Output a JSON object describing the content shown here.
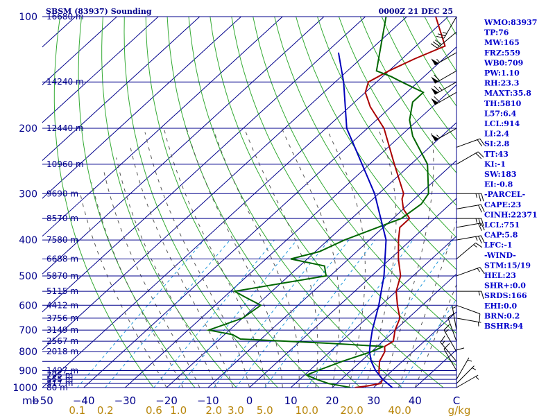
{
  "header": {
    "station": "SBSM (83937) Sounding",
    "time": "0000Z 21 DEC 25"
  },
  "colors": {
    "isobar": "#00008b",
    "isotherm": "#00008b",
    "dry_adiabat": "#33aa33",
    "moist_adiabat": "#555555",
    "mixing_ratio": "#2299dd",
    "temperature": "#aa0000",
    "dewpoint": "#006600",
    "parcel": "#0000bb",
    "wind_barb": "#000000"
  },
  "chart_data": {
    "type": "skew-t",
    "xlim": [
      -50,
      50
    ],
    "pressure_range": [
      1000,
      100
    ],
    "isobars": [
      {
        "p": 1000,
        "label": "1000",
        "height": "80 m"
      },
      {
        "p": 975,
        "label": "",
        "height": "317 m"
      },
      {
        "p": 950,
        "label": "",
        "height": "555 m"
      },
      {
        "p": 925,
        "label": "",
        "height": "795 m"
      },
      {
        "p": 900,
        "label": "900",
        "height": "1497 m"
      },
      {
        "p": 850,
        "label": "",
        "height": ""
      },
      {
        "p": 800,
        "label": "800",
        "height": "2018 m"
      },
      {
        "p": 750,
        "label": "",
        "height": "2567 m"
      },
      {
        "p": 700,
        "label": "700",
        "height": "3149 m"
      },
      {
        "p": 650,
        "label": "",
        "height": "3756 m"
      },
      {
        "p": 600,
        "label": "600",
        "height": "4412 m"
      },
      {
        "p": 550,
        "label": "",
        "height": "5115 m"
      },
      {
        "p": 500,
        "label": "500",
        "height": "5870 m"
      },
      {
        "p": 450,
        "label": "",
        "height": "6688 m"
      },
      {
        "p": 400,
        "label": "400",
        "height": "7580 m"
      },
      {
        "p": 350,
        "label": "",
        "height": "8570 m"
      },
      {
        "p": 300,
        "label": "300",
        "height": "9690 m"
      },
      {
        "p": 250,
        "label": "",
        "height": "10960 m"
      },
      {
        "p": 200,
        "label": "200",
        "height": "12440 m"
      },
      {
        "p": 150,
        "label": "",
        "height": "14240 m"
      },
      {
        "p": 100,
        "label": "100",
        "height": "16680 m"
      }
    ],
    "temp_ticks": [
      {
        "t": -50,
        "label": "−50"
      },
      {
        "t": -40,
        "label": "−40"
      },
      {
        "t": -30,
        "label": "−30"
      },
      {
        "t": -20,
        "label": "−20"
      },
      {
        "t": -10,
        "label": "−10"
      },
      {
        "t": 0,
        "label": "0"
      },
      {
        "t": 10,
        "label": "10"
      },
      {
        "t": 20,
        "label": "20"
      },
      {
        "t": 30,
        "label": "30"
      },
      {
        "t": 40,
        "label": "40"
      },
      {
        "t": 50,
        "label": "C"
      }
    ],
    "x_unit_label": "mb",
    "mixing_ratio_labels": [
      "0.1",
      "0.2",
      "0.6",
      "1.0",
      "2.0",
      "3.0",
      "5.0",
      "10.0",
      "20.0",
      "40.0",
      "g/kg"
    ],
    "mixing_ratios": [
      0.1,
      0.2,
      0.6,
      1.0,
      2.0,
      3.0,
      5.0,
      10.0,
      20.0,
      40.0
    ],
    "series": [
      {
        "name": "",
        "kind": "temperature",
        "points": [
          [
            1000,
            25.5
          ],
          [
            990,
            28
          ],
          [
            975,
            30.6
          ],
          [
            950,
            30
          ],
          [
            925,
            28
          ],
          [
            900,
            26.8
          ],
          [
            850,
            24.5
          ],
          [
            800,
            23.2
          ],
          [
            775,
            21.8
          ],
          [
            750,
            22.5
          ],
          [
            700,
            20
          ],
          [
            650,
            18
          ],
          [
            600,
            14
          ],
          [
            550,
            10
          ],
          [
            500,
            7
          ],
          [
            450,
            2
          ],
          [
            400,
            -3
          ],
          [
            370,
            -6
          ],
          [
            350,
            -6
          ],
          [
            330,
            -10
          ],
          [
            310,
            -13
          ],
          [
            300,
            -14
          ],
          [
            250,
            -24
          ],
          [
            200,
            -36
          ],
          [
            175,
            -45
          ],
          [
            160,
            -50
          ],
          [
            150,
            -52
          ],
          [
            140,
            -50
          ],
          [
            130,
            -47
          ],
          [
            120,
            -43
          ],
          [
            100,
            -53
          ]
        ]
      },
      {
        "name": "",
        "kind": "dewpoint",
        "points": [
          [
            1000,
            24.4
          ],
          [
            990,
            22
          ],
          [
            975,
            18
          ],
          [
            950,
            14
          ],
          [
            925,
            10.5
          ],
          [
            900,
            12
          ],
          [
            850,
            15.5
          ],
          [
            800,
            20
          ],
          [
            775,
            21.5
          ],
          [
            760,
            8
          ],
          [
            740,
            -15
          ],
          [
            720,
            -18
          ],
          [
            700,
            -25
          ],
          [
            650,
            -20
          ],
          [
            600,
            -19
          ],
          [
            570,
            -25
          ],
          [
            550,
            -29
          ],
          [
            500,
            -11
          ],
          [
            470,
            -14
          ],
          [
            450,
            -24
          ],
          [
            430,
            -19
          ],
          [
            400,
            -16
          ],
          [
            350,
            -8
          ],
          [
            320,
            -7
          ],
          [
            300,
            -8
          ],
          [
            250,
            -16
          ],
          [
            210,
            -27
          ],
          [
            190,
            -32
          ],
          [
            170,
            -36
          ],
          [
            160,
            -36
          ],
          [
            150,
            -44
          ],
          [
            145,
            -48
          ],
          [
            140,
            -53
          ],
          [
            100,
            -65
          ]
        ]
      },
      {
        "name": "",
        "kind": "parcel",
        "points": [
          [
            1000,
            34.5
          ],
          [
            950,
            30
          ],
          [
            900,
            26
          ],
          [
            850,
            22.5
          ],
          [
            800,
            19.5
          ],
          [
            760,
            17.5
          ],
          [
            700,
            14.5
          ],
          [
            600,
            9.5
          ],
          [
            500,
            3
          ],
          [
            400,
            -6
          ],
          [
            300,
            -21
          ],
          [
            200,
            -45
          ],
          [
            150,
            -58
          ],
          [
            125,
            -67
          ]
        ]
      }
    ],
    "winds": [
      {
        "p": 1000,
        "dir": 60,
        "spd": 5
      },
      {
        "p": 975,
        "dir": 45,
        "spd": 5
      },
      {
        "p": 950,
        "dir": 30,
        "spd": 5
      },
      {
        "p": 925,
        "dir": 360,
        "spd": 10
      },
      {
        "p": 900,
        "dir": 330,
        "spd": 10
      },
      {
        "p": 850,
        "dir": 320,
        "spd": 15
      },
      {
        "p": 800,
        "dir": 330,
        "spd": 15
      },
      {
        "p": 750,
        "dir": 340,
        "spd": 10
      },
      {
        "p": 700,
        "dir": 350,
        "spd": 5
      },
      {
        "p": 650,
        "dir": 100,
        "spd": 5
      },
      {
        "p": 600,
        "dir": 110,
        "spd": 10
      },
      {
        "p": 550,
        "dir": 90,
        "spd": 15
      },
      {
        "p": 500,
        "dir": 70,
        "spd": 15
      },
      {
        "p": 450,
        "dir": 50,
        "spd": 15
      },
      {
        "p": 400,
        "dir": 80,
        "spd": 25
      },
      {
        "p": 370,
        "dir": 80,
        "spd": 20
      },
      {
        "p": 350,
        "dir": 90,
        "spd": 25
      },
      {
        "p": 330,
        "dir": 80,
        "spd": 20
      },
      {
        "p": 300,
        "dir": 90,
        "spd": 25
      },
      {
        "p": 250,
        "dir": 60,
        "spd": 20
      },
      {
        "p": 225,
        "dir": 70,
        "spd": 20
      },
      {
        "p": 200,
        "dir": 240,
        "spd": 55
      },
      {
        "p": 160,
        "dir": 240,
        "spd": 60
      },
      {
        "p": 150,
        "dir": 240,
        "spd": 65
      },
      {
        "p": 140,
        "dir": 240,
        "spd": 60
      },
      {
        "p": 125,
        "dir": 240,
        "spd": 55
      },
      {
        "p": 110,
        "dir": 230,
        "spd": 30
      },
      {
        "p": 100,
        "dir": 210,
        "spd": 25
      }
    ]
  },
  "indices": [
    "WMO:83937",
    "TP:76",
    "MW:165",
    "FRZ:559",
    "WB0:709",
    "PW:1.10",
    "RH:23.3",
    "MAXT:35.8",
    "TH:5810",
    "L57:6.4",
    "LCL:914",
    "LI:2.4",
    "SI:2.8",
    "TT:43",
    "KI:-1",
    "SW:183",
    "EI:-0.8",
    "-PARCEL-",
    "CAPE:23",
    "CINH:22371",
    "LCL:751",
    "CAP:5.8",
    "LFC:-1",
    "-WIND-",
    "STM:15/19",
    "HEL:23",
    "SHR+:0.0",
    "SRDS:166",
    "EHI:0.0",
    "BRN:0.2",
    "BSHR:94"
  ]
}
